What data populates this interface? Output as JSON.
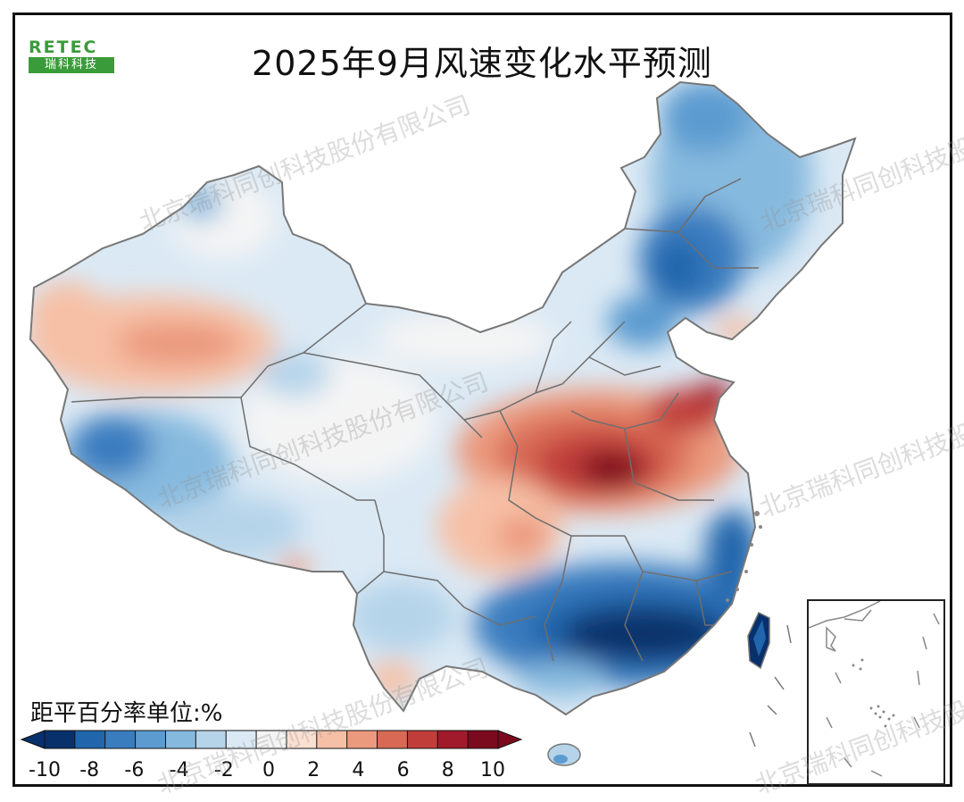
{
  "title": "2025年9月风速变化水平预测",
  "logo": {
    "brand": "RETEC",
    "subtitle": "瑞科科技"
  },
  "legend": {
    "label": "距平百分率单位:%",
    "ticks": [
      "-10",
      "-8",
      "-6",
      "-4",
      "-2",
      "0",
      "2",
      "4",
      "6",
      "8",
      "10"
    ],
    "colors": [
      "#08306b",
      "#2166ac",
      "#3a7dbf",
      "#5b9bd0",
      "#86b9de",
      "#b5d4ea",
      "#dbe9f4",
      "#f4f4f4",
      "#fbe0d2",
      "#f6c0a6",
      "#eb9a7e",
      "#d86a55",
      "#c03d3a",
      "#a11a2b",
      "#7c0a1e"
    ]
  },
  "watermark": "北京瑞科同创科技股份有限公司"
}
